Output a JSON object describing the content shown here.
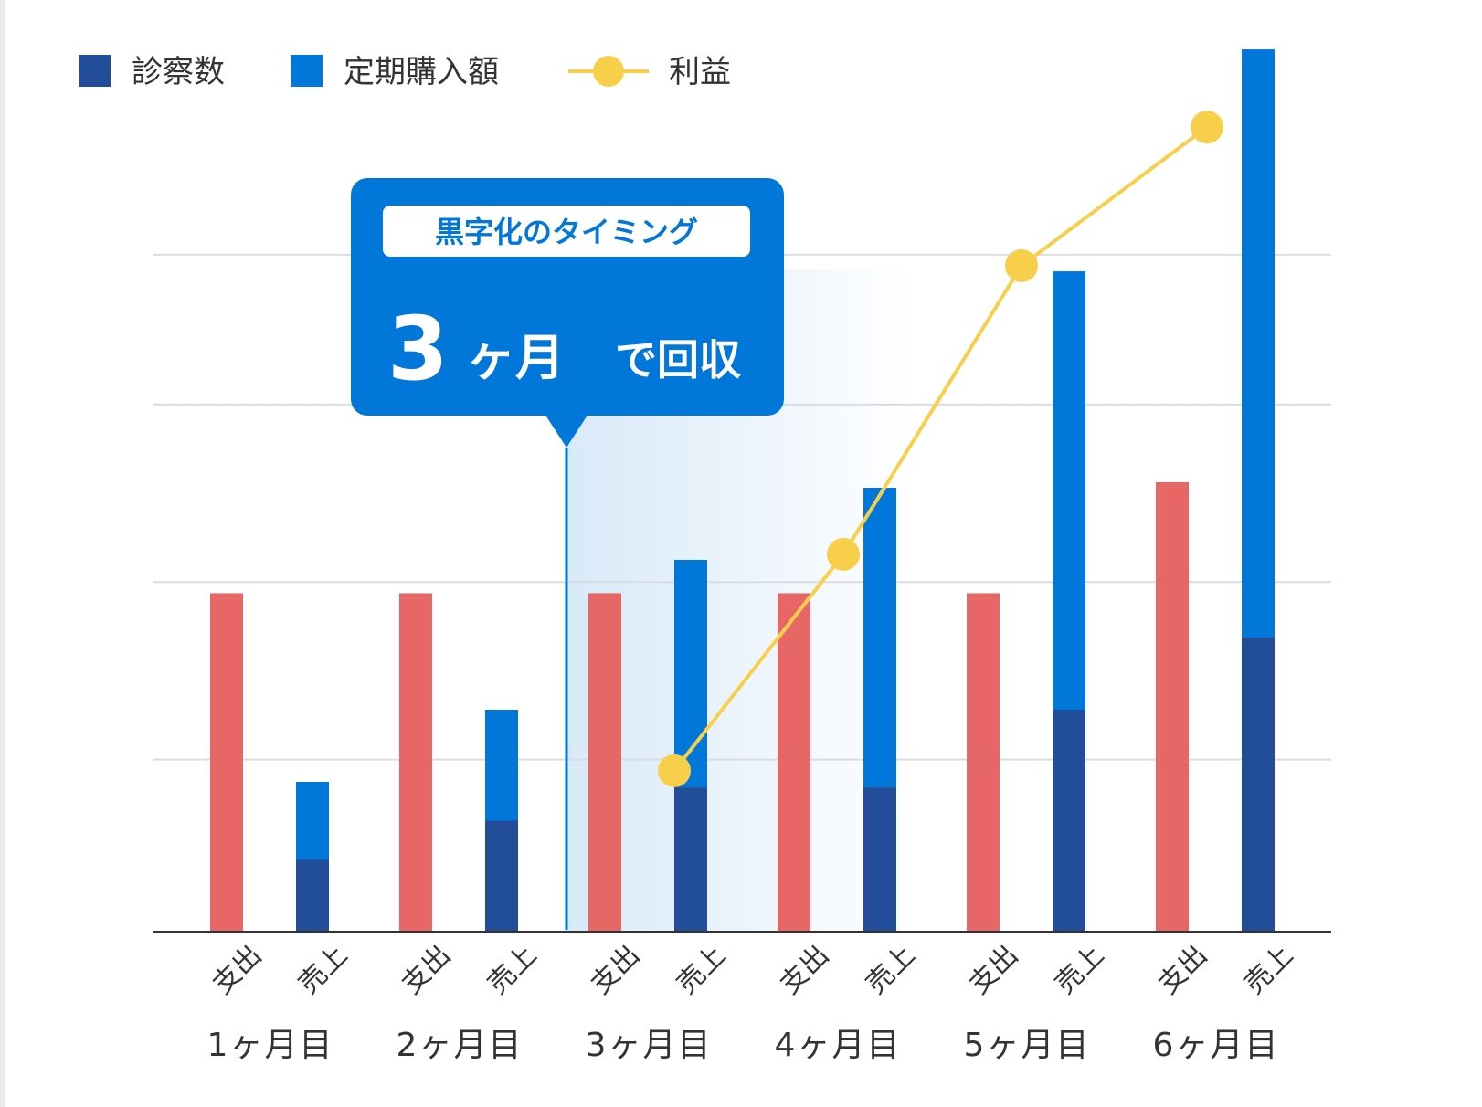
{
  "colors": {
    "expense": "#e76767",
    "visits": "#224e99",
    "subscription": "#0077d9",
    "profit": "#f8cf4b",
    "grid": "#d9dde3",
    "axis": "#333333"
  },
  "callout": {
    "tag": "黒字化のタイミング",
    "big_number": "3",
    "big_unit": "ヶ月",
    "suffix": "で回収"
  },
  "chart_data": {
    "type": "bar",
    "title": "",
    "xlabel": "",
    "ylabel": "",
    "ylim": [
      0,
      16
    ],
    "grid": true,
    "legend_position": "top-left",
    "legend": [
      {
        "label": "診察数",
        "kind": "square",
        "color": "#224e99"
      },
      {
        "label": "定期購入額",
        "kind": "square",
        "color": "#0077d9"
      },
      {
        "label": "利益",
        "kind": "line-dot",
        "color": "#f8cf4b"
      }
    ],
    "categories": [
      "1ヶ月目",
      "2ヶ月目",
      "3ヶ月目",
      "4ヶ月目",
      "5ヶ月目",
      "6ヶ月目"
    ],
    "bar_labels": [
      "支出",
      "売上"
    ],
    "expense": [
      6.1,
      6.1,
      6.1,
      6.1,
      6.1,
      8.1
    ],
    "sales_stacked": [
      {
        "name": "診察数",
        "values": [
          1.3,
          2.0,
          2.6,
          2.6,
          4.0,
          5.3
        ]
      },
      {
        "name": "定期購入額",
        "values": [
          2.7,
          4.0,
          6.7,
          8.0,
          11.9,
          15.9
        ]
      }
    ],
    "profit": {
      "name": "利益",
      "values": [
        null,
        null,
        2.9,
        6.8,
        12.0,
        14.5
      ]
    },
    "highlight_month": "3ヶ月目"
  }
}
